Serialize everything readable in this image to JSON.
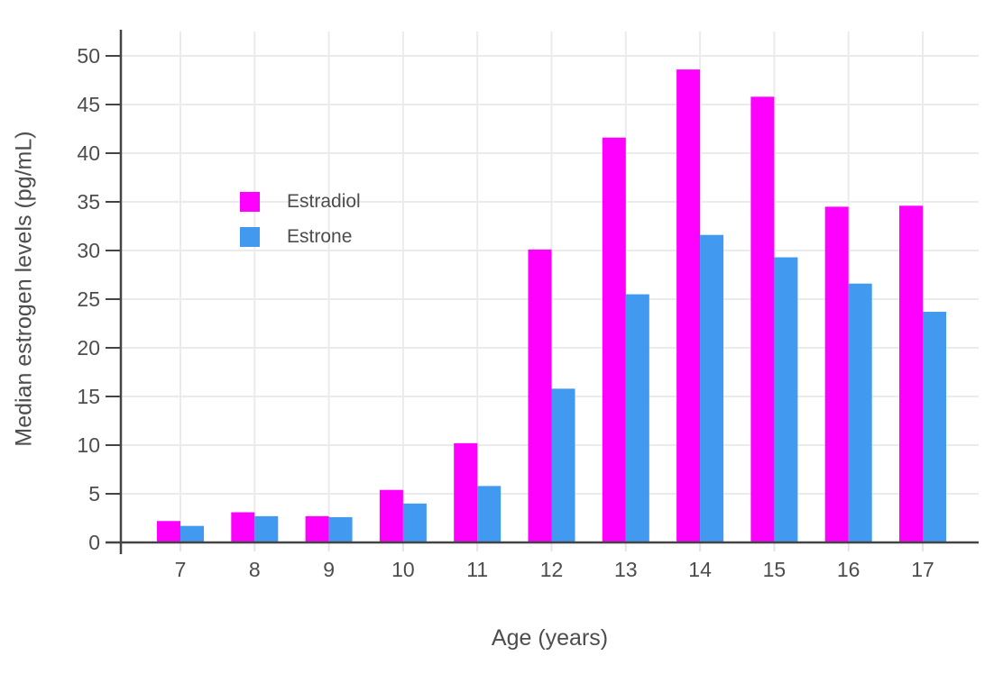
{
  "chart_data": {
    "type": "bar",
    "title": "",
    "xlabel": "Age (years)",
    "ylabel": "Median estrogen levels (pg/mL)",
    "categories": [
      "7",
      "8",
      "9",
      "10",
      "11",
      "12",
      "13",
      "14",
      "15",
      "16",
      "17"
    ],
    "series": [
      {
        "name": "Estradiol",
        "color": "#FF00FF",
        "values": [
          2.2,
          3.1,
          2.7,
          5.4,
          10.2,
          30.1,
          41.6,
          48.6,
          45.8,
          34.5,
          34.6
        ]
      },
      {
        "name": "Estrone",
        "color": "#4199F0",
        "values": [
          1.7,
          2.7,
          2.6,
          4.0,
          5.8,
          15.8,
          25.5,
          31.6,
          29.3,
          26.6,
          23.7
        ]
      }
    ],
    "ylim": [
      0,
      52.5
    ],
    "yticks": [
      0,
      5,
      10,
      15,
      20,
      25,
      30,
      35,
      40,
      45,
      50
    ],
    "grid": true,
    "legend_position": "inside-top-left"
  },
  "colors": {
    "grid": "#EBEBEB",
    "axis": "#444444",
    "tick_below_axis": "#E4E4E4",
    "text": "#4D4D4D",
    "background": "#FFFFFF"
  }
}
